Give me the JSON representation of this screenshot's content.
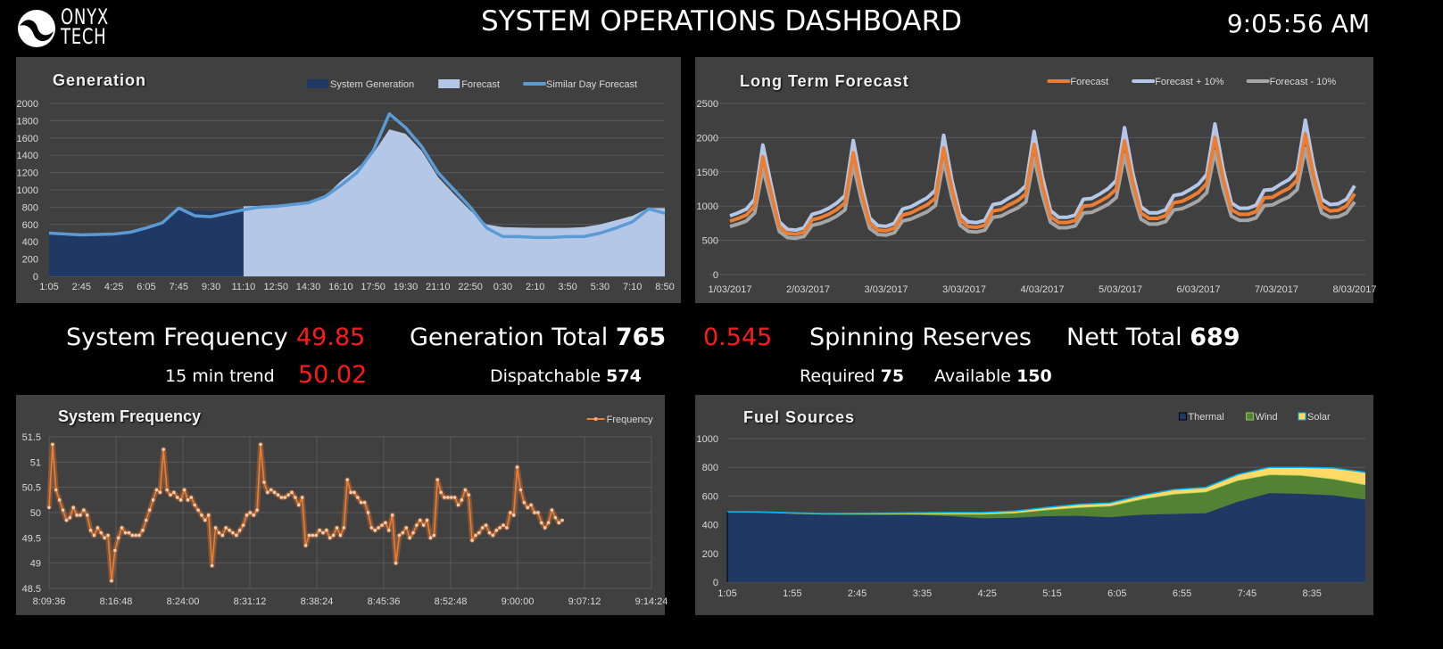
{
  "header": {
    "logo_text_top": "ONYX",
    "logo_text_bottom": "TECH",
    "title": "SYSTEM OPERATIONS DASHBOARD",
    "clock": "9:05:56 AM"
  },
  "stats": {
    "system_frequency_label": "System Frequency",
    "system_frequency_value": "49.85",
    "trend_label": "15 min trend",
    "trend_value": "50.02",
    "generation_total_label": "Generation Total",
    "generation_total_value": "765",
    "dispatchable_label": "Dispatchable",
    "dispatchable_value": "574",
    "ratio_value": "0.545",
    "spinning_reserves_label": "Spinning Reserves",
    "required_label": "Required",
    "required_value": "75",
    "available_label": "Available",
    "available_value": "150",
    "nett_total_label": "Nett Total",
    "nett_total_value": "689",
    "highlight_color": "#ff1a1a"
  },
  "chart_data": [
    {
      "id": "generation",
      "type": "area",
      "title": "Generation",
      "x_ticks": [
        "1:05",
        "2:45",
        "4:25",
        "6:05",
        "7:45",
        "9:30",
        "11:10",
        "12:50",
        "14:30",
        "16:10",
        "17:50",
        "19:30",
        "21:10",
        "22:50",
        "0:30",
        "2:10",
        "3:50",
        "5:30",
        "7:10",
        "8:50"
      ],
      "ylim": [
        0,
        2000
      ],
      "y_ticks": [
        0,
        200,
        400,
        600,
        800,
        1000,
        1200,
        1400,
        1600,
        1800,
        2000
      ],
      "grid": true,
      "legend": "top-right",
      "series": [
        {
          "name": "System Generation",
          "type": "area",
          "color": "#1f3864",
          "start_index": 0,
          "values": [
            500,
            490,
            480,
            485,
            495,
            520,
            560,
            640,
            780,
            760,
            750,
            770,
            790
          ]
        },
        {
          "name": "Forecast",
          "type": "area",
          "color": "#b4c7e7",
          "start_index": 12,
          "values": [
            810,
            815,
            820,
            840,
            860,
            920,
            1100,
            1250,
            1420,
            1700,
            1650,
            1450,
            1150,
            950,
            760,
            600,
            570,
            565,
            560,
            560,
            560,
            570,
            600,
            650,
            700,
            790,
            790
          ]
        },
        {
          "name": "Similar Day Forecast",
          "type": "line",
          "color": "#5b9bd5",
          "start_index": 0,
          "values": [
            500,
            490,
            480,
            485,
            490,
            510,
            560,
            620,
            790,
            700,
            690,
            730,
            770,
            800,
            810,
            830,
            850,
            920,
            1050,
            1200,
            1450,
            1880,
            1720,
            1500,
            1200,
            1000,
            800,
            560,
            460,
            460,
            450,
            450,
            460,
            460,
            500,
            560,
            630,
            780,
            730
          ]
        }
      ]
    },
    {
      "id": "long_term",
      "type": "line",
      "title": "Long Term Forecast",
      "x_ticks": [
        "1/03/2017",
        "2/03/2017",
        "3/03/2017",
        "3/03/2017",
        "4/03/2017",
        "5/03/2017",
        "6/03/2017",
        "7/03/2017",
        "8/03/2017"
      ],
      "ylim": [
        0,
        2500
      ],
      "y_ticks": [
        0,
        500,
        1000,
        1500,
        2000,
        2500
      ],
      "grid": true,
      "legend": "top-right",
      "forecast": [
        780,
        820,
        870,
        1000,
        1720,
        1200,
        700,
        600,
        590,
        620,
        800,
        830,
        880,
        950,
        1050,
        1780,
        1200,
        750,
        650,
        640,
        680,
        870,
        900,
        960,
        1020,
        1120,
        1850,
        1250,
        800,
        700,
        690,
        720,
        930,
        950,
        1020,
        1080,
        1180,
        1900,
        1300,
        850,
        760,
        760,
        790,
        1000,
        1010,
        1070,
        1140,
        1250,
        1950,
        1350,
        900,
        820,
        820,
        860,
        1050,
        1070,
        1130,
        1200,
        1330,
        2000,
        1400,
        950,
        880,
        880,
        920,
        1120,
        1130,
        1200,
        1260,
        1380,
        2050,
        1450,
        1000,
        930,
        940,
        1000,
        1180
      ],
      "series": [
        {
          "name": "Forecast",
          "color": "#ed7d31",
          "offset_pct": 0
        },
        {
          "name": "Forecast + 10%",
          "color": "#b4c7e7",
          "offset_pct": 10
        },
        {
          "name": "Forecast - 10%",
          "color": "#a5a5a5",
          "offset_pct": -10
        }
      ]
    },
    {
      "id": "frequency",
      "type": "line",
      "title": "System Frequency",
      "x_ticks": [
        "8:09:36",
        "8:16:48",
        "8:24:00",
        "8:31:12",
        "8:38:24",
        "8:45:36",
        "8:52:48",
        "9:00:00",
        "9:07:12",
        "9:14:24"
      ],
      "ylim": [
        48.5,
        51.5
      ],
      "y_ticks": [
        "48.5",
        "49",
        "49.5",
        "50",
        "50.5",
        "51",
        "51.5"
      ],
      "grid": true,
      "legend": "top-right",
      "series": [
        {
          "name": "Frequency",
          "color": "#ed7d31",
          "values": [
            50.1,
            51.35,
            50.45,
            50.25,
            50.05,
            49.85,
            49.9,
            50.1,
            49.95,
            49.95,
            50.05,
            49.95,
            49.65,
            49.55,
            49.7,
            49.6,
            49.5,
            49.55,
            48.65,
            49.25,
            49.5,
            49.7,
            49.6,
            49.6,
            49.55,
            49.55,
            49.55,
            49.65,
            49.85,
            50.05,
            50.25,
            50.45,
            50.4,
            51.25,
            50.45,
            50.35,
            50.4,
            50.3,
            50.25,
            50.45,
            50.25,
            50.3,
            50.15,
            50.05,
            49.95,
            49.85,
            49.95,
            48.95,
            49.7,
            49.6,
            49.55,
            49.7,
            49.65,
            49.6,
            49.55,
            49.65,
            49.75,
            49.95,
            50.0,
            49.95,
            50.05,
            51.35,
            50.6,
            50.4,
            50.45,
            50.4,
            50.35,
            50.3,
            50.3,
            50.35,
            50.4,
            50.3,
            50.15,
            50.3,
            49.35,
            49.55,
            49.55,
            49.55,
            49.65,
            49.6,
            49.65,
            49.5,
            49.55,
            49.7,
            49.55,
            49.7,
            50.65,
            50.4,
            50.4,
            50.3,
            50.2,
            50.2,
            50.0,
            49.7,
            49.65,
            49.7,
            49.75,
            49.8,
            49.65,
            49.95,
            49.0,
            49.55,
            49.6,
            49.7,
            49.5,
            49.6,
            49.75,
            49.85,
            49.75,
            49.85,
            49.5,
            49.55,
            50.65,
            50.4,
            50.3,
            50.3,
            50.3,
            50.3,
            50.15,
            50.25,
            50.45,
            50.35,
            49.45,
            49.55,
            49.6,
            49.7,
            49.75,
            49.6,
            49.55,
            49.65,
            49.7,
            49.75,
            49.7,
            50.0,
            49.95,
            50.9,
            50.45,
            50.2,
            50.1,
            50.15,
            50.0,
            50.0,
            49.8,
            49.7,
            49.8,
            50.05,
            49.9,
            49.8,
            49.85
          ]
        }
      ]
    },
    {
      "id": "fuel_sources",
      "type": "area",
      "stacked": true,
      "title": "Fuel Sources",
      "x_ticks": [
        "1:05",
        "1:55",
        "2:45",
        "3:35",
        "4:25",
        "5:15",
        "6:05",
        "6:55",
        "7:45",
        "8:35"
      ],
      "ylim": [
        0,
        1000
      ],
      "y_ticks": [
        0,
        200,
        400,
        600,
        800,
        1000
      ],
      "grid": true,
      "legend": "top-right",
      "series": [
        {
          "name": "Thermal",
          "color": "#1f3864",
          "edge": "#1f3864",
          "values": [
            490,
            485,
            478,
            472,
            470,
            470,
            468,
            460,
            445,
            448,
            460,
            462,
            452,
            470,
            475,
            480,
            560,
            620,
            615,
            605,
            575
          ]
        },
        {
          "name": "Wind",
          "color": "#548235",
          "edge": "#92d050",
          "values": [
            0,
            3,
            3,
            3,
            5,
            5,
            8,
            15,
            30,
            35,
            45,
            60,
            80,
            110,
            140,
            150,
            150,
            130,
            130,
            115,
            105
          ]
        },
        {
          "name": "Solar",
          "color": "#ffd966",
          "edge": "#00b0f0",
          "values": [
            0,
            2,
            3,
            3,
            5,
            6,
            8,
            10,
            10,
            12,
            15,
            20,
            20,
            25,
            30,
            30,
            40,
            50,
            55,
            75,
            85
          ]
        }
      ]
    }
  ]
}
